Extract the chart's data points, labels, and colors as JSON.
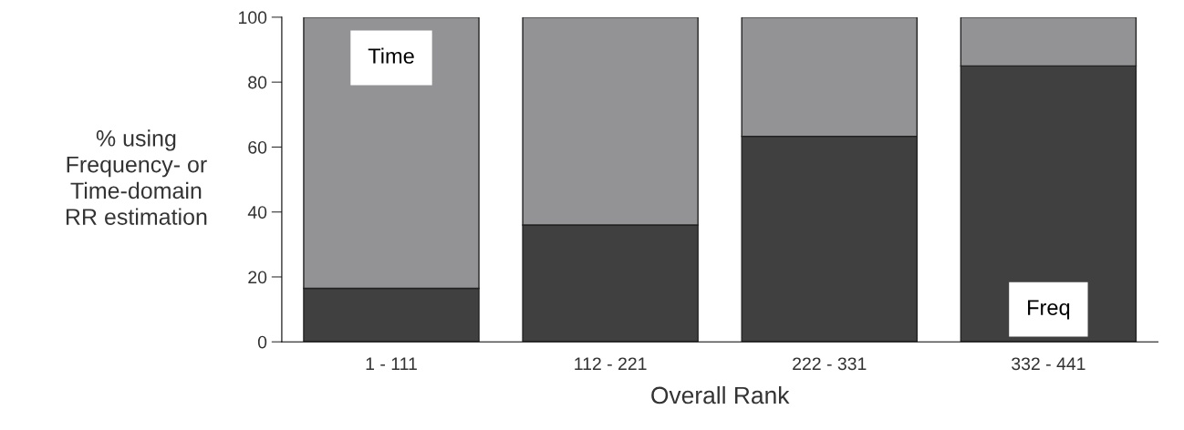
{
  "chart_data": {
    "type": "bar",
    "stacked": true,
    "xlabel": "Overall Rank",
    "ylabel": "% using\nFrequency- or\nTime-domain\nRR estimation",
    "categories": [
      "1 - 111",
      "112 - 221",
      "222 - 331",
      "332 - 441"
    ],
    "series": [
      {
        "name": "Freq",
        "color": "#404040",
        "values": [
          16.5,
          36,
          63.3,
          85
        ]
      },
      {
        "name": "Time",
        "color": "#939396",
        "values": [
          83.5,
          64,
          36.7,
          15
        ]
      }
    ],
    "ylim": [
      0,
      100
    ],
    "yticks": [
      0,
      20,
      40,
      60,
      80,
      100
    ],
    "grid": false,
    "legend": false
  }
}
